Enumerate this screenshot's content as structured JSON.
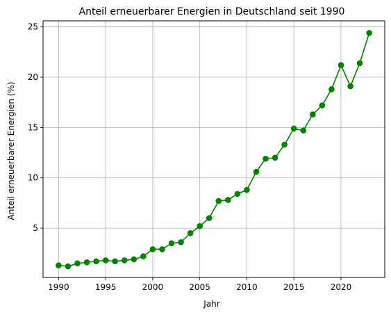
{
  "chart_data": {
    "type": "line",
    "title": "Anteil erneuerbarer Energien in Deutschland seit 1990",
    "xlabel": "Jahr",
    "ylabel": "Anteil erneuerbarer Energien (%)",
    "xlim": [
      1988.35,
      2024.65
    ],
    "ylim": [
      0.1,
      25.6
    ],
    "xticks": [
      1990,
      1995,
      2000,
      2005,
      2010,
      2015,
      2020
    ],
    "yticks": [
      5,
      10,
      15,
      20,
      25
    ],
    "grid": true,
    "line_color": "#008000",
    "marker": "circle",
    "x": [
      1990,
      1991,
      1992,
      1993,
      1994,
      1995,
      1996,
      1997,
      1998,
      1999,
      2000,
      2001,
      2002,
      2003,
      2004,
      2005,
      2006,
      2007,
      2008,
      2009,
      2010,
      2011,
      2012,
      2013,
      2014,
      2015,
      2016,
      2017,
      2018,
      2019,
      2020,
      2021,
      2022,
      2023
    ],
    "y": [
      1.3,
      1.2,
      1.5,
      1.6,
      1.7,
      1.8,
      1.7,
      1.8,
      1.9,
      2.2,
      2.9,
      2.9,
      3.5,
      3.6,
      4.5,
      5.2,
      6.0,
      7.7,
      7.8,
      8.4,
      8.8,
      10.6,
      11.9,
      12.0,
      13.3,
      14.9,
      14.7,
      16.3,
      17.2,
      18.8,
      21.2,
      19.1,
      21.4,
      24.4
    ]
  }
}
